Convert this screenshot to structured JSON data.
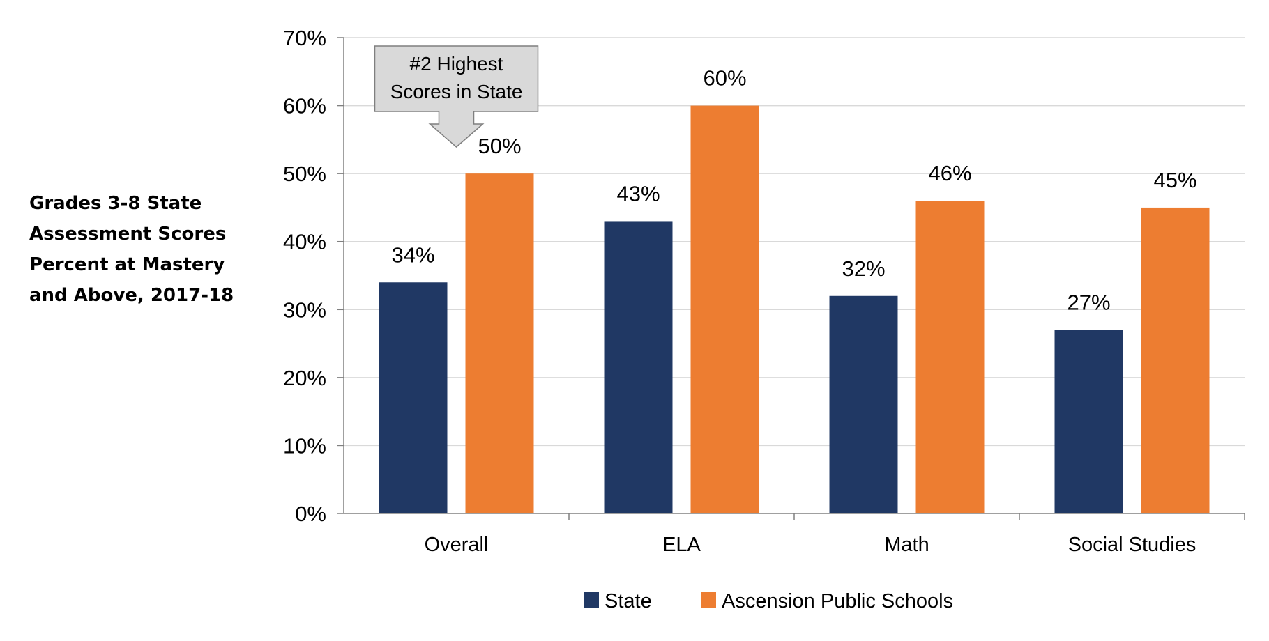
{
  "title": "Grades 3-8 State\nAssessment Scores\nPercent at Mastery\nand Above, 2017-18",
  "annotation": {
    "line1": "#2 Highest",
    "line2": "Scores in State"
  },
  "colors": {
    "state": "#203864",
    "district": "#ED7D31",
    "grid": "#D9D9D9",
    "axis": "#808080",
    "callout_fill": "#D9D9D9",
    "callout_stroke": "#7F7F7F"
  },
  "chart_data": {
    "type": "bar",
    "categories": [
      "Overall",
      "ELA",
      "Math",
      "Social Studies"
    ],
    "series": [
      {
        "name": "State",
        "values": [
          34,
          43,
          32,
          27
        ],
        "labels": [
          "34%",
          "43%",
          "32%",
          "27%"
        ]
      },
      {
        "name": "Ascension Public Schools",
        "values": [
          50,
          60,
          46,
          45
        ],
        "labels": [
          "50%",
          "60%",
          "46%",
          "45%"
        ]
      }
    ],
    "ylim": [
      0,
      70
    ],
    "yticks": [
      0,
      10,
      20,
      30,
      40,
      50,
      60,
      70
    ],
    "ytick_labels": [
      "0%",
      "10%",
      "20%",
      "30%",
      "40%",
      "50%",
      "60%",
      "70%"
    ],
    "grid": true,
    "legend": "bottom-center"
  }
}
